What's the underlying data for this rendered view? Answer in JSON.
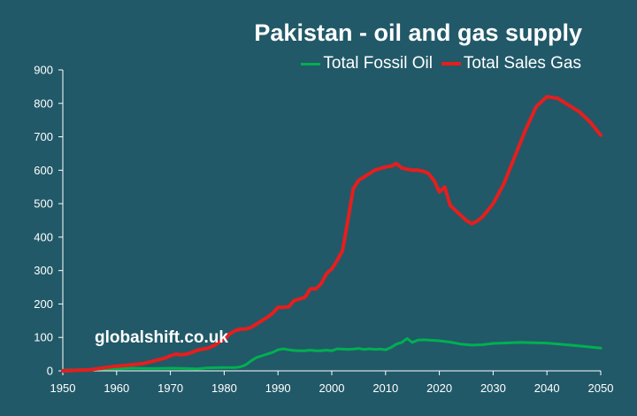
{
  "chart_data": {
    "type": "line",
    "title": "Pakistan - oil and gas supply",
    "xlabel": "",
    "ylabel": "",
    "xlim": [
      1950,
      2050
    ],
    "ylim": [
      0,
      900
    ],
    "x_ticks": [
      "1950",
      "1960",
      "1970",
      "1980",
      "1990",
      "2000",
      "2010",
      "2020",
      "2030",
      "2040",
      "2050"
    ],
    "y_ticks": [
      "0",
      "100",
      "200",
      "300",
      "400",
      "500",
      "600",
      "700",
      "800",
      "900"
    ],
    "grid": false,
    "legend_position": "top-right",
    "series": [
      {
        "name": "Total Fossil Oil",
        "color": "#00B050",
        "x": [
          1950,
          1955,
          1960,
          1963,
          1966,
          1970,
          1973,
          1975,
          1977,
          1980,
          1982,
          1983,
          1984,
          1985,
          1986,
          1987,
          1988,
          1989,
          1990,
          1991,
          1992,
          1993,
          1994,
          1995,
          1996,
          1997,
          1998,
          1999,
          2000,
          2001,
          2002,
          2003,
          2004,
          2005,
          2006,
          2007,
          2008,
          2009,
          2010,
          2011,
          2012,
          2013,
          2014,
          2015,
          2016,
          2017,
          2018,
          2020,
          2022,
          2024,
          2026,
          2028,
          2030,
          2035,
          2040,
          2045,
          2050
        ],
        "values": [
          2,
          4,
          6,
          8,
          7,
          8,
          7,
          6,
          9,
          10,
          10,
          12,
          18,
          30,
          40,
          45,
          50,
          55,
          63,
          66,
          63,
          61,
          60,
          60,
          62,
          60,
          60,
          62,
          60,
          66,
          65,
          64,
          65,
          67,
          64,
          66,
          64,
          65,
          63,
          70,
          80,
          85,
          97,
          85,
          92,
          93,
          92,
          90,
          86,
          80,
          77,
          78,
          82,
          85,
          83,
          76,
          68
        ]
      },
      {
        "name": "Total Sales Gas",
        "color": "#E51E1E",
        "x": [
          1950,
          1955,
          1958,
          1960,
          1962,
          1965,
          1967,
          1969,
          1970,
          1971,
          1972,
          1973,
          1974,
          1975,
          1977,
          1978,
          1979,
          1980,
          1981,
          1982,
          1983,
          1984,
          1985,
          1986,
          1987,
          1988,
          1989,
          1990,
          1991,
          1992,
          1993,
          1994,
          1995,
          1996,
          1997,
          1998,
          1999,
          2000,
          2001,
          2002,
          2003,
          2004,
          2005,
          2006,
          2007,
          2008,
          2009,
          2010,
          2011,
          2012,
          2013,
          2014,
          2015,
          2016,
          2017,
          2018,
          2019,
          2020,
          2021,
          2022,
          2023,
          2024,
          2025,
          2026,
          2027,
          2028,
          2030,
          2032,
          2034,
          2036,
          2038,
          2040,
          2042,
          2044,
          2046,
          2048,
          2050
        ],
        "values": [
          0,
          3,
          10,
          14,
          17,
          22,
          30,
          38,
          45,
          50,
          48,
          50,
          55,
          62,
          68,
          75,
          85,
          95,
          110,
          120,
          125,
          125,
          130,
          140,
          150,
          160,
          172,
          190,
          190,
          192,
          210,
          215,
          220,
          245,
          245,
          260,
          290,
          305,
          330,
          360,
          450,
          545,
          570,
          580,
          590,
          600,
          605,
          610,
          612,
          620,
          607,
          603,
          600,
          600,
          597,
          590,
          570,
          535,
          550,
          495,
          480,
          465,
          450,
          440,
          448,
          460,
          500,
          560,
          640,
          720,
          790,
          820,
          815,
          795,
          775,
          745,
          705
        ]
      }
    ]
  },
  "watermark": "globalshift.co.uk",
  "colors": {
    "background": "#215968",
    "axis": "#ffffff",
    "text": "#ffffff"
  }
}
